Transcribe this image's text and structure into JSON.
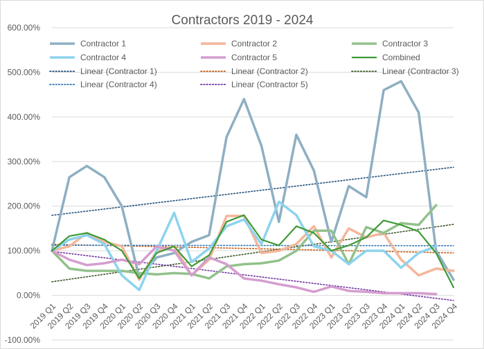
{
  "chart_data": {
    "type": "line",
    "title": "Contractors 2019 - 2024",
    "xlabel": "",
    "ylabel": "",
    "categories": [
      "2019 Q1",
      "2019 Q2",
      "2019 Q3",
      "2019 Q4",
      "2020 Q1",
      "2020 Q2",
      "2020 Q3",
      "2020 Q4",
      "2021 Q1",
      "2021 Q2",
      "2021 Q3",
      "2021 Q4",
      "2022 Q1",
      "2022 Q2",
      "2022 Q3",
      "2022 Q4",
      "2023 Q1",
      "2023 Q2",
      "2023 Q3",
      "2023 Q4",
      "2024 Q1",
      "2024 Q2",
      "2024 Q3",
      "2024 Q4"
    ],
    "ylim": [
      -100,
      600
    ],
    "yticks": [
      -100,
      0,
      100,
      200,
      300,
      400,
      500,
      600
    ],
    "ytick_labels": [
      "-100.00%",
      "0.00%",
      "100.00%",
      "200.00%",
      "300.00%",
      "400.00%",
      "500.00%",
      "600.00%"
    ],
    "grid": true,
    "legend_position": "top",
    "series": [
      {
        "name": "Contractor 1",
        "color": "#8EAFC2",
        "width": 3.5,
        "style": "solid",
        "values": [
          100,
          265,
          290,
          265,
          200,
          40,
          85,
          95,
          120,
          135,
          355,
          440,
          335,
          165,
          360,
          280,
          120,
          245,
          220,
          460,
          480,
          410,
          100,
          35
        ]
      },
      {
        "name": "Contractor 2",
        "color": "#F4B69A",
        "width": 3.5,
        "style": "solid",
        "values": [
          100,
          110,
          140,
          120,
          110,
          35,
          100,
          110,
          45,
          80,
          178,
          178,
          95,
          100,
          115,
          155,
          85,
          150,
          130,
          140,
          80,
          45,
          60,
          55
        ]
      },
      {
        "name": "Contractor 3",
        "color": "#92C18B",
        "width": 3.5,
        "style": "solid",
        "values": [
          100,
          60,
          55,
          55,
          55,
          50,
          47,
          50,
          48,
          38,
          65,
          70,
          72,
          78,
          100,
          145,
          145,
          70,
          153,
          140,
          162,
          158,
          202,
          null
        ]
      },
      {
        "name": "Contractor 4",
        "color": "#8DD3EE",
        "width": 3.5,
        "style": "solid",
        "values": [
          100,
          125,
          135,
          115,
          45,
          12,
          100,
          185,
          75,
          105,
          155,
          170,
          115,
          210,
          180,
          110,
          100,
          70,
          100,
          100,
          62,
          95,
          110,
          null
        ]
      },
      {
        "name": "Contractor 5",
        "color": "#D49DCF",
        "width": 3.5,
        "style": "solid",
        "values": [
          100,
          80,
          68,
          72,
          80,
          70,
          110,
          100,
          45,
          85,
          70,
          38,
          33,
          25,
          18,
          8,
          20,
          10,
          8,
          5,
          5,
          5,
          3,
          null
        ]
      },
      {
        "name": "Combined",
        "color": "#3D9A35",
        "width": 2.2,
        "style": "solid",
        "values": [
          100,
          133,
          140,
          125,
          100,
          38,
          95,
          110,
          65,
          90,
          165,
          180,
          125,
          112,
          155,
          140,
          100,
          112,
          130,
          168,
          158,
          143,
          95,
          18
        ]
      },
      {
        "name": "Linear (Contractor 1)",
        "color": "#1F4E79",
        "width": 1.6,
        "style": "dotted",
        "trend_of": 0,
        "n": 24
      },
      {
        "name": "Linear (Contractor 2)",
        "color": "#C55A11",
        "width": 1.6,
        "style": "dotted",
        "trend_of": 1,
        "n": 24
      },
      {
        "name": "Linear (Contractor 3)",
        "color": "#375623",
        "width": 1.6,
        "style": "dotted",
        "trend_of": 2,
        "n": 24
      },
      {
        "name": "Linear (Contractor 4)",
        "color": "#2E75B6",
        "width": 1.6,
        "style": "dotted",
        "trend_of": 3,
        "n": 24
      },
      {
        "name": "Linear (Contractor 5)",
        "color": "#7030A0",
        "width": 1.6,
        "style": "dotted",
        "trend_of": 4,
        "n": 24
      }
    ]
  }
}
